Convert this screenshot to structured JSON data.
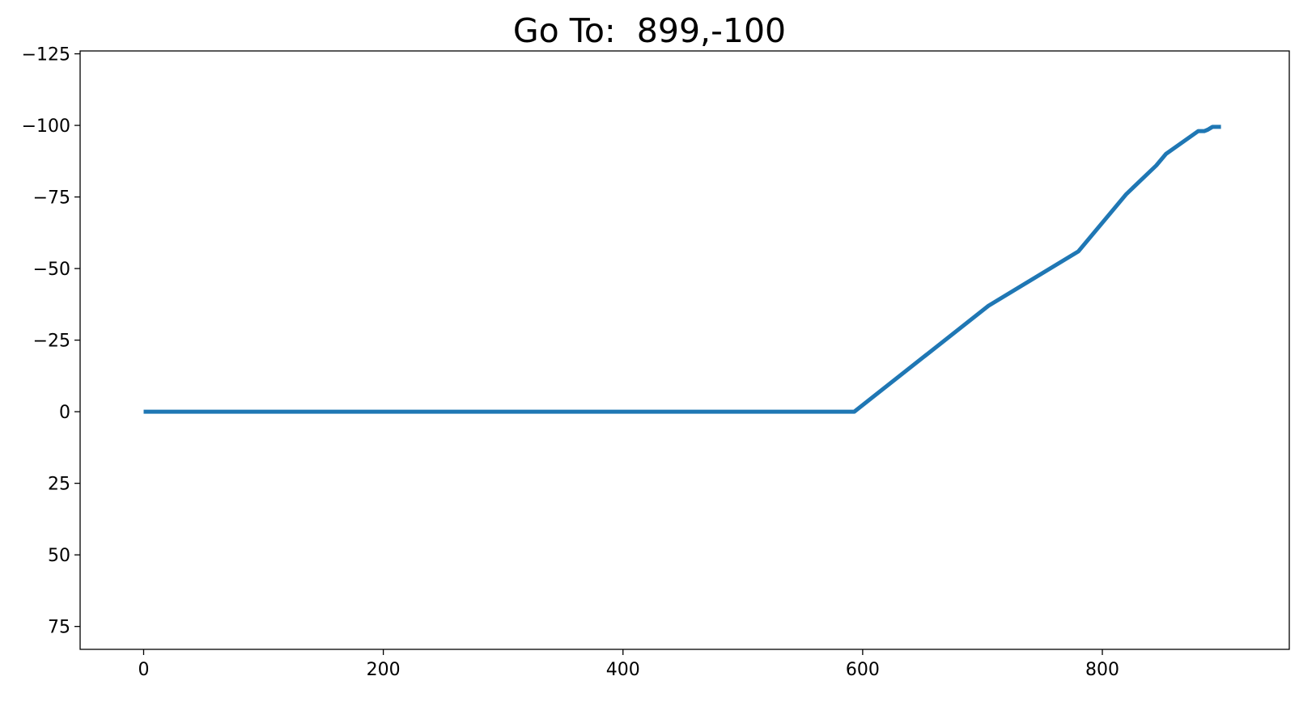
{
  "chart_data": {
    "type": "line",
    "title": "Go To:  899,-100",
    "xlabel": "",
    "ylabel": "",
    "xlim": [
      -53,
      956
    ],
    "ylim": [
      -126,
      83
    ],
    "y_inverted": true,
    "grid": false,
    "xticks": [
      0,
      200,
      400,
      600,
      800
    ],
    "yticks": [
      -125,
      -100,
      -75,
      -50,
      -25,
      0,
      25,
      50,
      75
    ],
    "ytick_labels": [
      "−125",
      "−100",
      "−75",
      "−50",
      "−25",
      "0",
      "25",
      "50",
      "75"
    ],
    "series": [
      {
        "color": "#1f77b4",
        "x": [
          0,
          593,
          705,
          780,
          820,
          845,
          853,
          880,
          885,
          888,
          892,
          899
        ],
        "y": [
          0,
          0,
          -37,
          -56,
          -76,
          -86,
          -90,
          -98,
          -98,
          -98.5,
          -99.5,
          -99.5
        ]
      }
    ]
  }
}
